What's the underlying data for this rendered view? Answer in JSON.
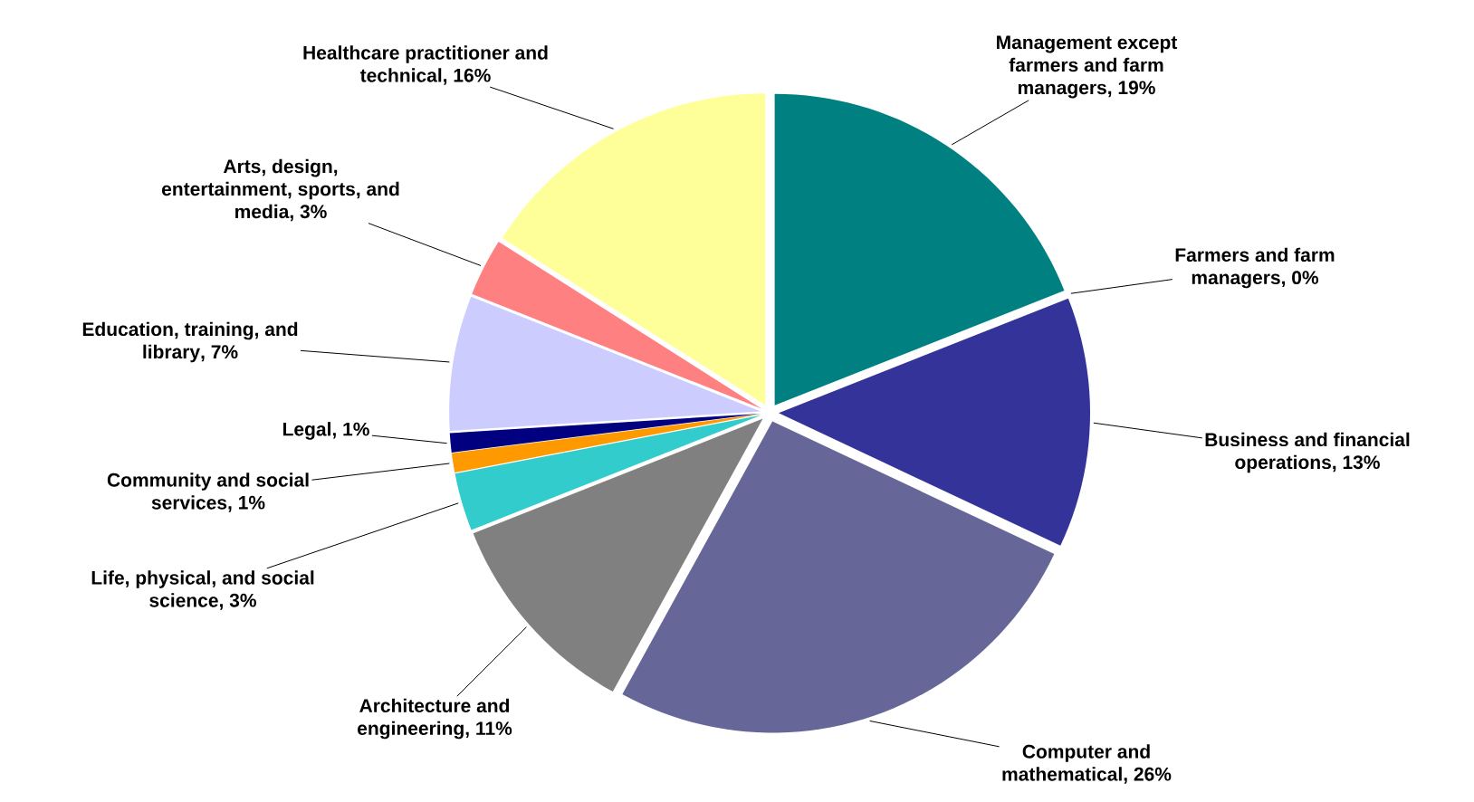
{
  "chart_data": {
    "type": "pie",
    "categories": [
      "Management  except farmers and farm managers",
      "Farmers and farm managers",
      "Business and financial operations",
      "Computer and mathematical",
      "Architecture and engineering",
      "Life, physical, and social science",
      "Community and social services",
      "Legal",
      "Education, training, and library",
      "Arts, design, entertainment, sports, and media",
      "Healthcare practitioner and technical"
    ],
    "values": [
      19,
      0,
      13,
      26,
      11,
      3,
      1,
      1,
      7,
      3,
      16
    ],
    "value_labels": [
      ", 19%",
      ", 0%",
      ", 13%",
      ", 26%",
      ", 11%",
      ", 3%",
      ", 1%",
      ", 1%",
      ", 7%",
      ", 3%",
      ", 16%"
    ],
    "colors": [
      "#008080",
      "#ff9900",
      "#333399",
      "#666699",
      "#808080",
      "#33cccc",
      "#ff9900",
      "#000080",
      "#ccccff",
      "#ff8080",
      "#ffff99"
    ]
  }
}
